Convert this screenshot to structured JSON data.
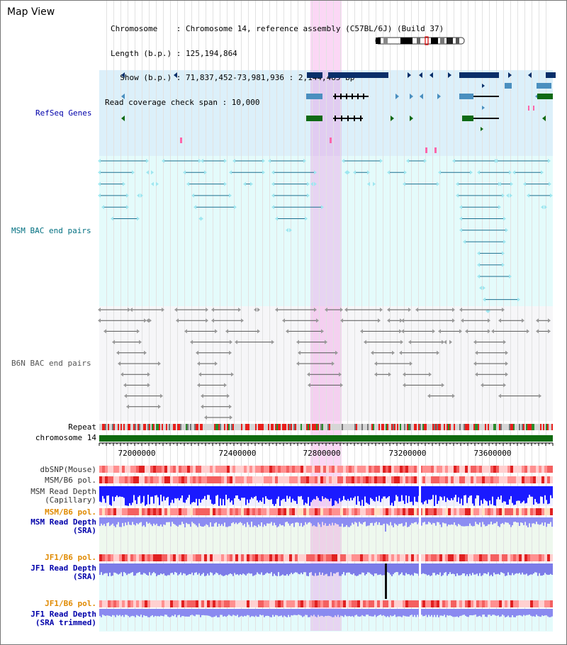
{
  "page_title": "Map View",
  "header": {
    "chromosome_line": "Chromosome    : Chromosome 14, reference assembly (C57BL/6J) (Build 37)",
    "length_line": "Length (b.p.) : 125,194,864",
    "show_line": "  Show (b.p.) : 71,837,452-73,981,936 : 2,144,485 bp",
    "coverage_line": "Read coverage check span : 10,000"
  },
  "tracks": {
    "refseq": "RefSeq Genes",
    "msm_bac": "MSM BAC end pairs",
    "b6n_bac": "B6N BAC end pairs",
    "repeat": "Repeat",
    "chromosome": "chromosome 14",
    "dbsnp": "dbSNP(Mouse)",
    "msm_b6_pol_1": "MSM/B6 pol.",
    "msm_read_depth_cap_1": "MSM Read Depth",
    "msm_read_depth_cap_2": "(Capillary)",
    "msm_b6_pol_2": "MSM/B6 pol.",
    "msm_read_depth_sra_1": "MSM Read Depth",
    "msm_read_depth_sra_2": "(SRA)",
    "jf1_b6_pol_1": "JF1/B6 pol.",
    "jf1_read_depth_sra_1": "JF1 Read Depth",
    "jf1_read_depth_sra_2": "(SRA)",
    "jf1_b6_pol_2": "JF1/B6 pol.",
    "jf1_read_depth_trim_1": "JF1 Read Depth",
    "jf1_read_depth_trim_2": "(SRA trimmed)"
  },
  "ticks": [
    "72000000",
    "72400000",
    "72800000",
    "73200000",
    "73600000"
  ],
  "colors": {
    "refseq_bg": "#dcf0fa",
    "msm_bg": "#e4fbfb",
    "b6n_bg": "#f6f6f8",
    "gene_dark": "#0a2f6a",
    "gene_mid": "#4a8fbf",
    "gene_green": "#0f6a14",
    "msm_line": "#1a6f8f",
    "b6n_line": "#555555",
    "chrom_green": "#0f6a0f",
    "label_blue": "#0000aa",
    "label_teal": "#006f80",
    "label_orange": "#e08a00",
    "highlight": "#f6c8ee"
  }
}
